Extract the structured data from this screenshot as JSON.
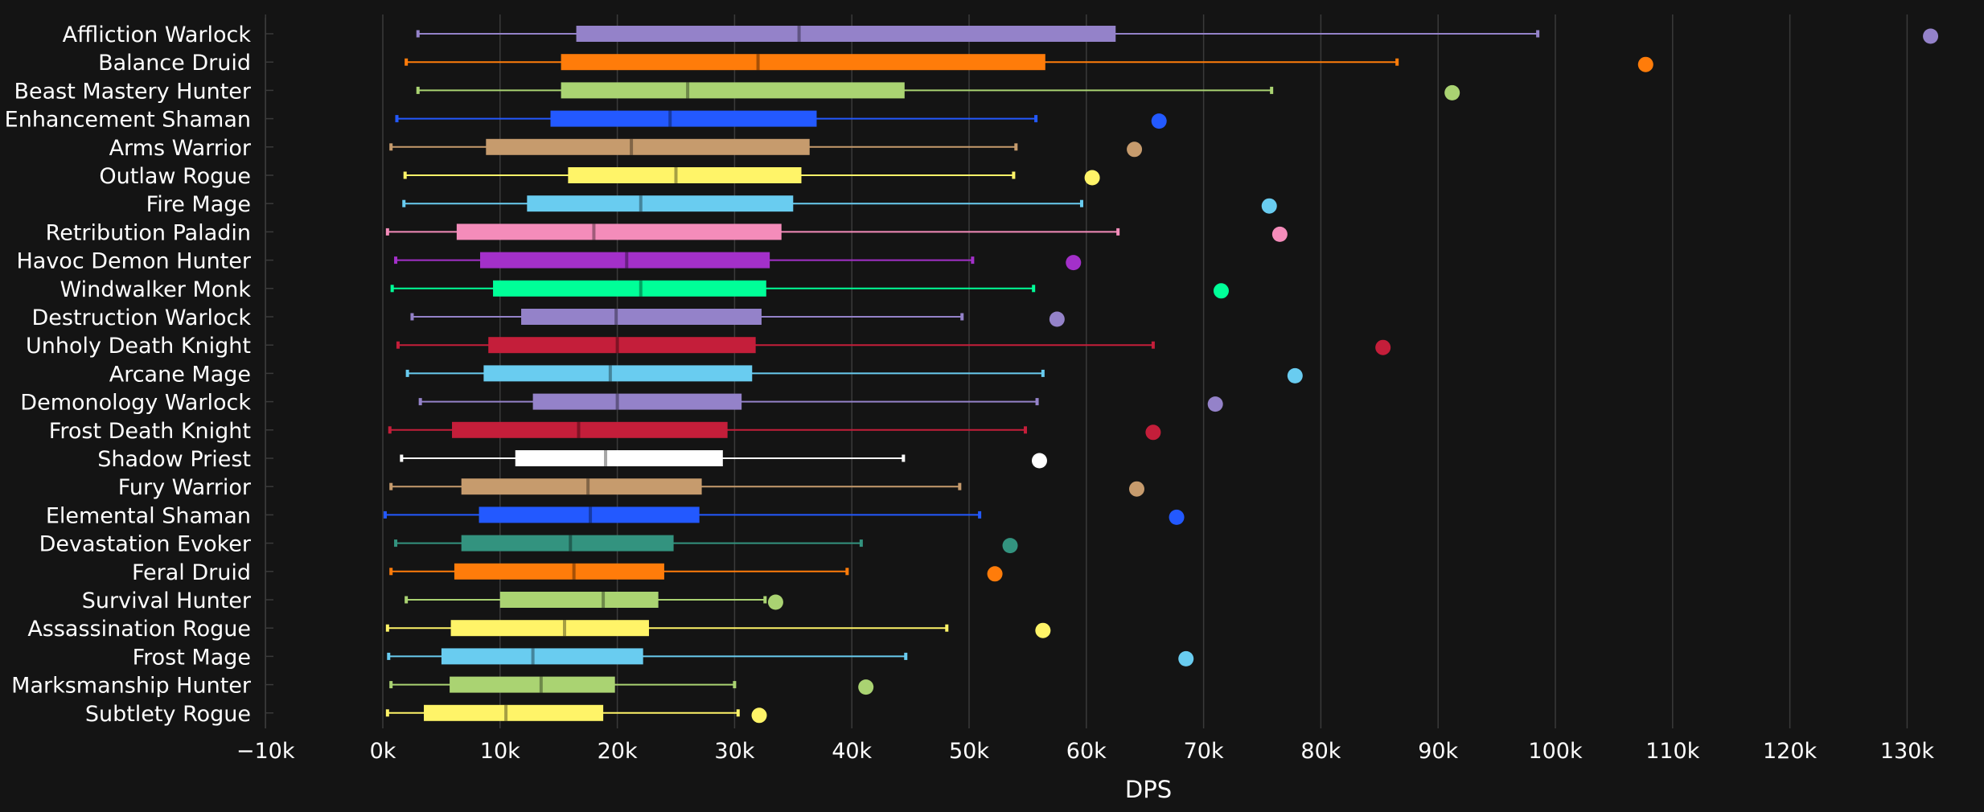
{
  "colors": {
    "background": "#141414",
    "grid": "#3a3a3a",
    "text": "#ffffff"
  },
  "chart_data": {
    "type": "boxplot",
    "title": "",
    "xlabel": "DPS",
    "ylabel": "",
    "xlim": [
      -10000,
      135000
    ],
    "xticks": [
      -10000,
      0,
      10000,
      20000,
      30000,
      40000,
      50000,
      60000,
      70000,
      80000,
      90000,
      100000,
      110000,
      120000,
      130000
    ],
    "xtick_labels": [
      "−10k",
      "0k",
      "10k",
      "20k",
      "30k",
      "40k",
      "50k",
      "60k",
      "70k",
      "80k",
      "90k",
      "100k",
      "110k",
      "120k",
      "130k"
    ],
    "series": [
      {
        "name": "Affliction Warlock",
        "color": "#9482C9",
        "min": 3000,
        "q1": 16500,
        "median": 35500,
        "q3": 62500,
        "max": 98500,
        "outlier": 132000
      },
      {
        "name": "Balance Druid",
        "color": "#FF7C0A",
        "min": 2000,
        "q1": 15200,
        "median": 32000,
        "q3": 56500,
        "max": 86500,
        "outlier": 107700
      },
      {
        "name": "Beast Mastery Hunter",
        "color": "#AAD372",
        "min": 3000,
        "q1": 15200,
        "median": 26000,
        "q3": 44500,
        "max": 75800,
        "outlier": 91200
      },
      {
        "name": "Enhancement Shaman",
        "color": "#2359FF",
        "min": 1200,
        "q1": 14300,
        "median": 24500,
        "q3": 37000,
        "max": 55700,
        "outlier": 66200
      },
      {
        "name": "Arms Warrior",
        "color": "#C69B6D",
        "min": 700,
        "q1": 8800,
        "median": 21200,
        "q3": 36400,
        "max": 54000,
        "outlier": 64100
      },
      {
        "name": "Outlaw Rogue",
        "color": "#FFF468",
        "min": 1900,
        "q1": 15800,
        "median": 25000,
        "q3": 35700,
        "max": 53800,
        "outlier": 60500
      },
      {
        "name": "Fire Mage",
        "color": "#69CCF0",
        "min": 1800,
        "q1": 12300,
        "median": 22000,
        "q3": 35000,
        "max": 59600,
        "outlier": 75600
      },
      {
        "name": "Retribution Paladin",
        "color": "#F48CBA",
        "min": 400,
        "q1": 6300,
        "median": 18000,
        "q3": 34000,
        "max": 62700,
        "outlier": 76500
      },
      {
        "name": "Havoc Demon Hunter",
        "color": "#A330C9",
        "min": 1100,
        "q1": 8300,
        "median": 20800,
        "q3": 33000,
        "max": 50300,
        "outlier": 58900
      },
      {
        "name": "Windwalker Monk",
        "color": "#00FF98",
        "min": 800,
        "q1": 9400,
        "median": 22000,
        "q3": 32700,
        "max": 55500,
        "outlier": 71500
      },
      {
        "name": "Destruction Warlock",
        "color": "#9482C9",
        "min": 2500,
        "q1": 11800,
        "median": 19900,
        "q3": 32300,
        "max": 49400,
        "outlier": 57500
      },
      {
        "name": "Unholy Death Knight",
        "color": "#C41E3A",
        "min": 1300,
        "q1": 9000,
        "median": 20000,
        "q3": 31800,
        "max": 65700,
        "outlier": 85300
      },
      {
        "name": "Arcane Mage",
        "color": "#69CCF0",
        "min": 2100,
        "q1": 8600,
        "median": 19400,
        "q3": 31500,
        "max": 56300,
        "outlier": 77800
      },
      {
        "name": "Demonology Warlock",
        "color": "#9482C9",
        "min": 3200,
        "q1": 12800,
        "median": 20000,
        "q3": 30600,
        "max": 55800,
        "outlier": 71000
      },
      {
        "name": "Frost Death Knight",
        "color": "#C41E3A",
        "min": 600,
        "q1": 5900,
        "median": 16700,
        "q3": 29400,
        "max": 54800,
        "outlier": 65700
      },
      {
        "name": "Shadow Priest",
        "color": "#FFFFFF",
        "min": 1600,
        "q1": 11300,
        "median": 19000,
        "q3": 29000,
        "max": 44400,
        "outlier": 56000
      },
      {
        "name": "Fury Warrior",
        "color": "#C69B6D",
        "min": 700,
        "q1": 6700,
        "median": 17500,
        "q3": 27200,
        "max": 49200,
        "outlier": 64300
      },
      {
        "name": "Elemental Shaman",
        "color": "#2359FF",
        "min": 200,
        "q1": 8200,
        "median": 17700,
        "q3": 27000,
        "max": 50900,
        "outlier": 67700
      },
      {
        "name": "Devastation Evoker",
        "color": "#33937F",
        "min": 1100,
        "q1": 6700,
        "median": 16000,
        "q3": 24800,
        "max": 40800,
        "outlier": 53500
      },
      {
        "name": "Feral Druid",
        "color": "#FF7C0A",
        "min": 700,
        "q1": 6100,
        "median": 16300,
        "q3": 24000,
        "max": 39600,
        "outlier": 52200
      },
      {
        "name": "Survival Hunter",
        "color": "#AAD372",
        "min": 2000,
        "q1": 10000,
        "median": 18800,
        "q3": 23500,
        "max": 32600,
        "outlier": 33500
      },
      {
        "name": "Assassination Rogue",
        "color": "#FFF468",
        "min": 400,
        "q1": 5800,
        "median": 15500,
        "q3": 22700,
        "max": 48100,
        "outlier": 56300
      },
      {
        "name": "Frost Mage",
        "color": "#69CCF0",
        "min": 500,
        "q1": 5000,
        "median": 12800,
        "q3": 22200,
        "max": 44600,
        "outlier": 68500
      },
      {
        "name": "Marksmanship Hunter",
        "color": "#AAD372",
        "min": 700,
        "q1": 5700,
        "median": 13500,
        "q3": 19800,
        "max": 30000,
        "outlier": 41200
      },
      {
        "name": "Subtlety Rogue",
        "color": "#FFF468",
        "min": 400,
        "q1": 3500,
        "median": 10500,
        "q3": 18800,
        "max": 30300,
        "outlier": 32100
      }
    ]
  }
}
